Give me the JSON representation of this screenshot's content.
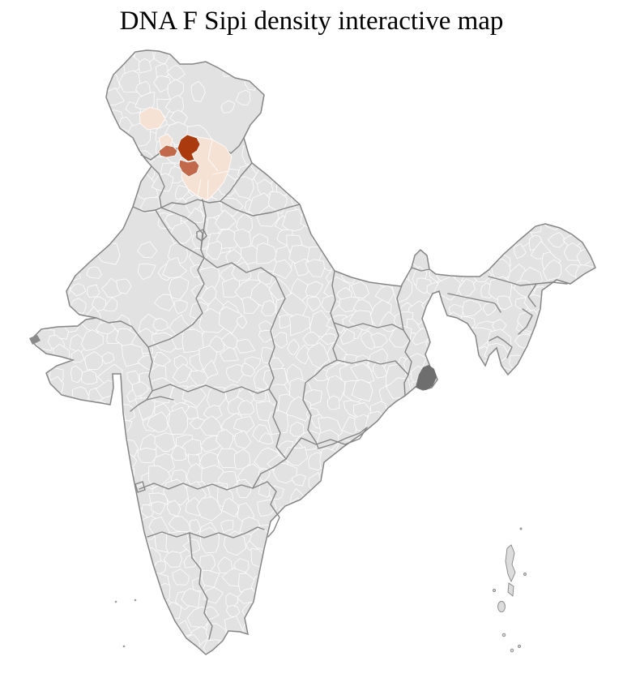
{
  "title": "DNA F Sipi density interactive map",
  "map": {
    "region": "India",
    "granularity": "districts",
    "background": "#ffffff",
    "base_fill": "#e2e2e2",
    "district_border": "#ffffff",
    "state_border": "#858585",
    "delta_fill": "#6e6e6e",
    "island_fill": "#dcdcdc",
    "density_scale": {
      "high": "#ab3a0e",
      "medium": "#c1694a",
      "low": "#f6e2d5"
    }
  }
}
